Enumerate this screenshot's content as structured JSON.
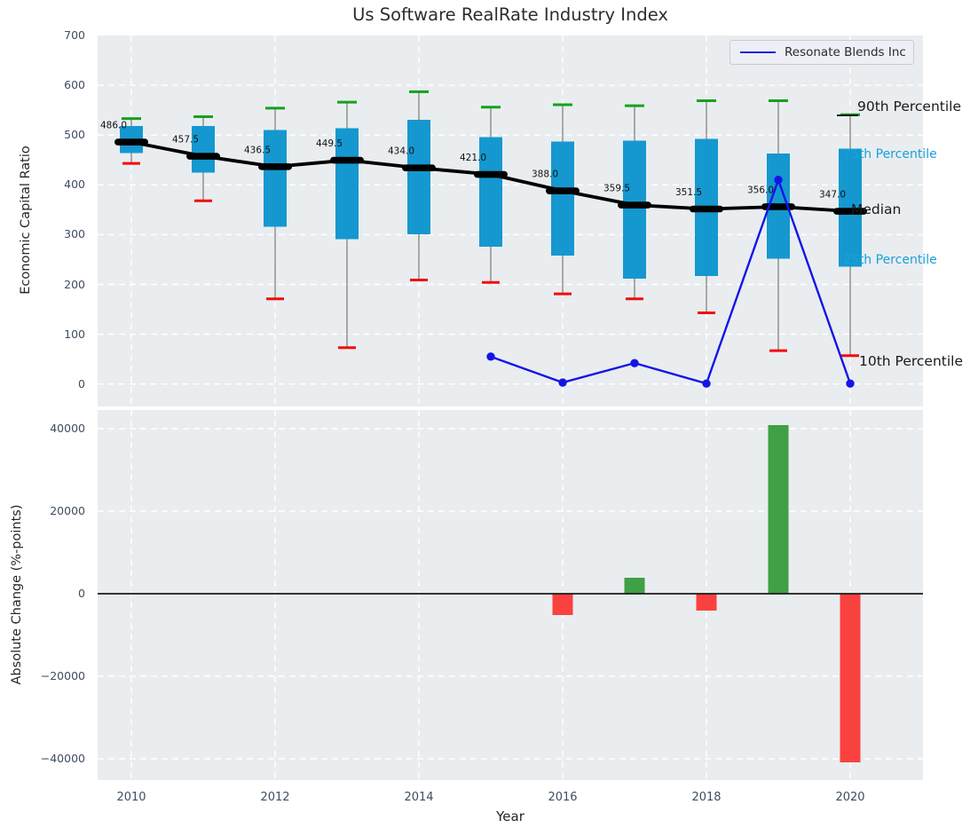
{
  "figure": {
    "background": "#ffffff",
    "plot_background": "#e9edf0",
    "grid_color": "#ffffff",
    "tick_color": "#3e4d62"
  },
  "legend": {
    "label": "Resonate Blends Inc",
    "line_color": "#1414e8"
  },
  "chart_data": [
    {
      "type": "box",
      "title": "Us Software RealRate Industry Index",
      "ylabel": "Economic Capital Ratio",
      "ylim": [
        -45,
        700
      ],
      "yticks": [
        0,
        100,
        200,
        300,
        400,
        500,
        600,
        700
      ],
      "xticks": [
        2010,
        2012,
        2014,
        2016,
        2018,
        2020
      ],
      "grid": true,
      "legend_position": "upper right",
      "years": [
        2010,
        2011,
        2012,
        2013,
        2014,
        2015,
        2016,
        2017,
        2018,
        2019,
        2020
      ],
      "p90": [
        533,
        537,
        554,
        566,
        587,
        556,
        561,
        559,
        569,
        569,
        541
      ],
      "p75": [
        518,
        518,
        510,
        514,
        531,
        496,
        487,
        489,
        492,
        463,
        473
      ],
      "median": [
        486,
        457.5,
        436.5,
        449.5,
        434,
        421,
        388,
        359.5,
        351.5,
        356,
        347
      ],
      "p25": [
        464,
        425,
        316,
        291,
        301,
        276,
        258,
        212,
        217,
        252,
        236
      ],
      "p10": [
        443,
        368,
        171,
        73,
        209,
        204,
        181,
        171,
        143,
        67,
        57
      ],
      "series": {
        "name": "Resonate Blends Inc",
        "x": [
          2015,
          2016,
          2017,
          2018,
          2019,
          2020
        ],
        "values": [
          55,
          3,
          42,
          1,
          410,
          1
        ]
      },
      "annotations": [
        {
          "text": "90th Percentile",
          "color": "#1a1a1a",
          "size": 15.5,
          "x": 966,
          "y": 121
        },
        {
          "text": "75th Percentile",
          "color": "#1aa1d9",
          "size": 14,
          "x": 950,
          "y": 175
        },
        {
          "text": "Median",
          "color": "#1a1a1a",
          "size": 15.5,
          "x": 959,
          "y": 237
        },
        {
          "text": "25th Percentile",
          "color": "#1aa1d9",
          "size": 14,
          "x": 950,
          "y": 294
        },
        {
          "text": "10th Percentile",
          "color": "#1a1a1a",
          "size": 15.5,
          "x": 968,
          "y": 408
        }
      ],
      "colors": {
        "box": "#1598cf",
        "p90_cap": "#16a11c",
        "p10_cap": "#f40b0b",
        "median": "#000000",
        "whisker": "#8a8a8a",
        "series": "#1414e8"
      }
    },
    {
      "type": "bar",
      "ylabel": "Absolute Change (%-points)",
      "xlabel": "Year",
      "ylim": [
        -44800,
        44600
      ],
      "yticks": [
        -40000,
        -20000,
        0,
        20000,
        40000
      ],
      "xticks": [
        2010,
        2012,
        2014,
        2016,
        2018,
        2020
      ],
      "grid": true,
      "x": [
        2016,
        2017,
        2018,
        2019,
        2020
      ],
      "values": [
        -5200,
        3900,
        -4100,
        40900,
        -40900
      ],
      "colors": {
        "positive": "#3fa045",
        "negative": "#f9423f",
        "zero_line": "#1a1a1a"
      }
    }
  ]
}
